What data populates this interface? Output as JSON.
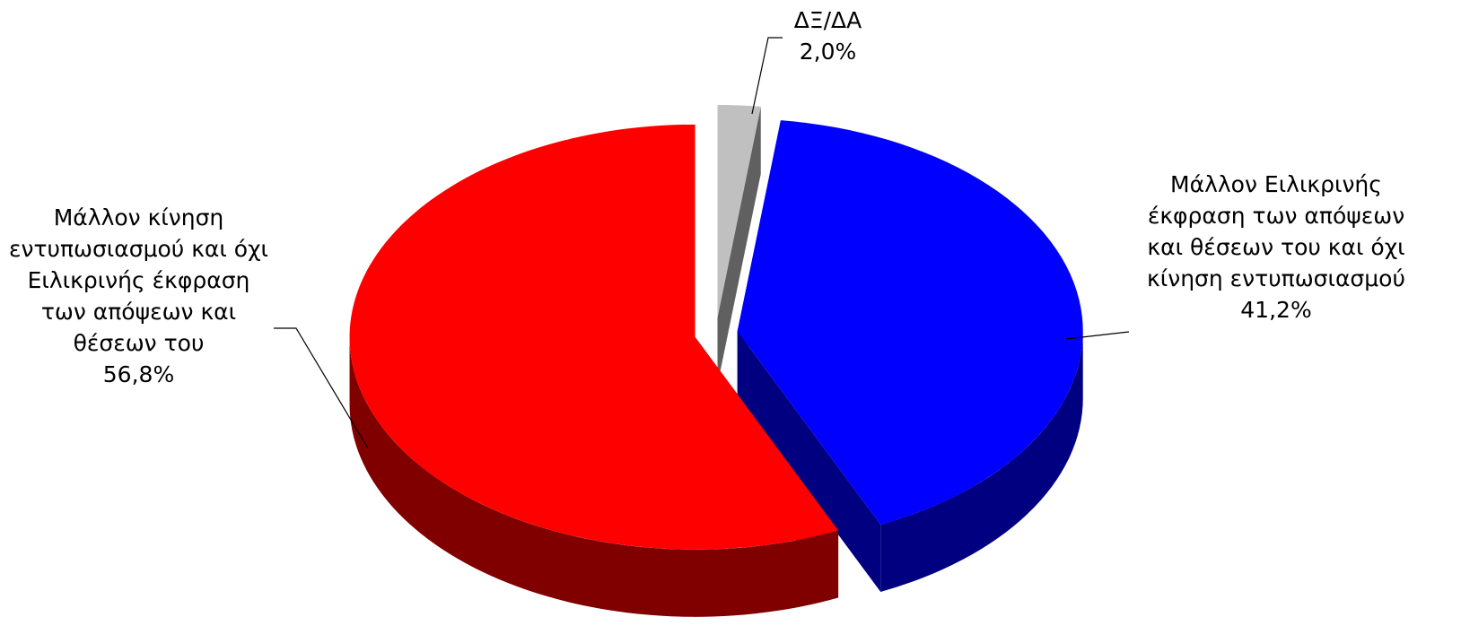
{
  "chart_data": {
    "type": "pie",
    "categories": [
      "ΔΞ/ΔΑ",
      "Μάλλον Ειλικρινής έκφραση των απόψεων και θέσεων του και όχι κίνηση εντυπωσιασμού",
      "Μάλλον κίνηση εντυπωσιασμού και όχι  Ειλικρινής έκφραση των απόψεων και θέσεων του"
    ],
    "values": [
      2.0,
      41.2,
      56.8
    ],
    "value_labels": [
      "2,0%",
      "41,2%",
      "56,8%"
    ],
    "colors": [
      "#c0c0c0",
      "#0000ff",
      "#ff0000"
    ],
    "side_colors": [
      "#606060",
      "#000080",
      "#800000"
    ]
  }
}
